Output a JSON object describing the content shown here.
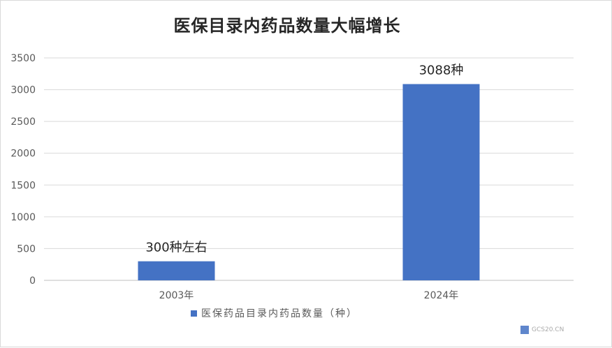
{
  "chart_data": {
    "type": "bar",
    "title": "医保目录内药品数量大幅增长",
    "categories": [
      "2003年",
      "2024年"
    ],
    "series": [
      {
        "name": "医保药品目录内药品数量（种）",
        "values": [
          300,
          3088
        ],
        "color": "#4472c4"
      }
    ],
    "data_labels": [
      "300种左右",
      "3088种"
    ],
    "ylim": [
      0,
      3500
    ],
    "yticks": [
      0,
      500,
      1000,
      1500,
      2000,
      2500,
      3000,
      3500
    ],
    "grid": true,
    "legend_position": "bottom"
  },
  "legend": {
    "label": "医保药品目录内药品数量（种）"
  },
  "watermark": {
    "text": "GCS20.CN"
  }
}
